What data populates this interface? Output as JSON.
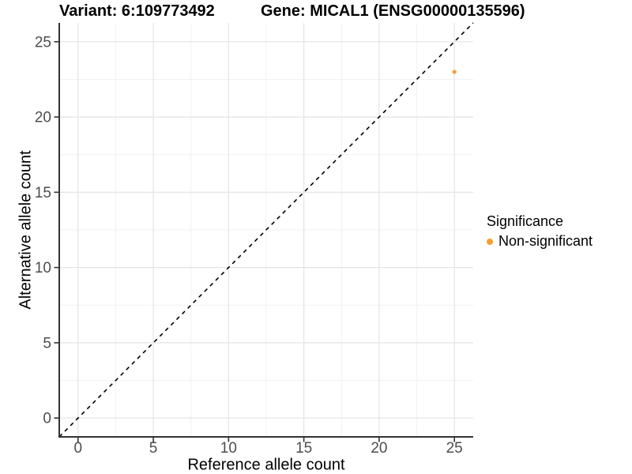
{
  "header": {
    "variant_title": "Variant: 6:109773492",
    "gene_title": "Gene: MICAL1 (ENSG00000135596)"
  },
  "legend": {
    "title": "Significance",
    "position": "right",
    "items": [
      {
        "label": "Non-significant",
        "color": "#F9A02B"
      }
    ]
  },
  "chart_data": {
    "type": "scatter",
    "title": "Variant: 6:109773492   Gene: MICAL1 (ENSG00000135596)",
    "xlabel": "Reference allele count",
    "ylabel": "Alternative allele count",
    "xlim": [
      -1.25,
      26.25
    ],
    "ylim": [
      -1.25,
      26.25
    ],
    "xticks": [
      0,
      5,
      10,
      15,
      20,
      25
    ],
    "yticks": [
      0,
      5,
      10,
      15,
      20,
      25
    ],
    "x_minor_ticks": [
      2.5,
      7.5,
      12.5,
      17.5,
      22.5
    ],
    "y_minor_ticks": [
      2.5,
      7.5,
      12.5,
      17.5,
      22.5
    ],
    "grid": true,
    "legend_position": "right",
    "series": [
      {
        "name": "Non-significant",
        "color": "#F9A02B",
        "points": [
          {
            "x": 25,
            "y": 23
          }
        ]
      }
    ],
    "identity_line": {
      "slope": 1,
      "intercept": 0,
      "style": "dashed",
      "color": "#000000"
    },
    "style": {
      "grid_major_color": "#E4E4E4",
      "grid_minor_color": "#F1F1F1",
      "axis_line_color": "#333333",
      "tick_label_color": "#4D4D4D",
      "background": "#FFFFFF"
    }
  }
}
